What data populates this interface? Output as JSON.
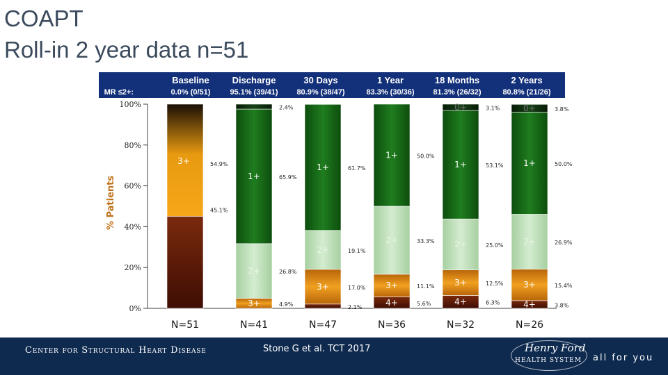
{
  "slide": {
    "title_line1": "COAPT",
    "title_line2": "Roll-in 2 year data n=51"
  },
  "header_row": {
    "row_label": "MR ≤2+:",
    "timepoints": [
      {
        "label": "Baseline",
        "mr": "0.0% (0/51)"
      },
      {
        "label": "Discharge",
        "mr": "95.1% (39/41)"
      },
      {
        "label": "30 Days",
        "mr": "80.9% (38/47)"
      },
      {
        "label": "1 Year",
        "mr": "83.3% (30/36)"
      },
      {
        "label": "18 Months",
        "mr": "81.3% (26/32)"
      },
      {
        "label": "2 Years",
        "mr": "80.8% (21/26)"
      }
    ]
  },
  "chart_data": {
    "type": "bar",
    "stacked": true,
    "ylabel": "% Patients",
    "ylim": [
      0,
      100
    ],
    "yticks": [
      "0%",
      "20%",
      "40%",
      "60%",
      "80%",
      "100%"
    ],
    "categories": [
      "N=51",
      "N=41",
      "N=47",
      "N=36",
      "N=32",
      "N=26"
    ],
    "series": [
      {
        "name": "4+",
        "color": "#6b1a08",
        "values": [
          45.1,
          0,
          2.1,
          5.6,
          6.3,
          3.8
        ],
        "labels": [
          "45.1%",
          "",
          "2.1%",
          "5.6%",
          "6.3%",
          "3.8%"
        ]
      },
      {
        "name": "3+",
        "color": "#d98a0a",
        "values": [
          54.9,
          4.9,
          17.0,
          11.1,
          12.5,
          15.4
        ],
        "labels": [
          "54.9%",
          "4.9%",
          "17.0%",
          "11.1%",
          "12.5%",
          "15.4%"
        ]
      },
      {
        "name": "2+",
        "color": "#b8dcb0",
        "values": [
          0,
          26.8,
          19.1,
          33.3,
          25.0,
          26.9
        ],
        "labels": [
          "",
          "26.8%",
          "19.1%",
          "33.3%",
          "25.0%",
          "26.9%"
        ]
      },
      {
        "name": "1+",
        "color": "#1a6e1a",
        "values": [
          0,
          65.9,
          61.7,
          50.0,
          53.1,
          50.0
        ],
        "labels": [
          "",
          "65.9%",
          "61.7%",
          "50.0%",
          "53.1%",
          "50.0%"
        ]
      },
      {
        "name": "0+",
        "color": "#0d2a0d",
        "values": [
          0,
          2.4,
          0,
          0,
          3.1,
          3.8
        ],
        "labels": [
          "",
          "2.4%",
          "",
          "",
          "3.1%",
          "3.8%"
        ]
      }
    ],
    "grid": false
  },
  "footer": {
    "center_name": "Center for Structural Heart Disease",
    "citation": "Stone G et al. TCT 2017",
    "logo_line1": "Henry Ford",
    "logo_line2": "HEALTH SYSTEM",
    "tagline": "all for you"
  },
  "colors": {
    "header_bg": "#13307a",
    "footer_bg": "#0f2a4f",
    "ylabel": "#c0721a"
  }
}
